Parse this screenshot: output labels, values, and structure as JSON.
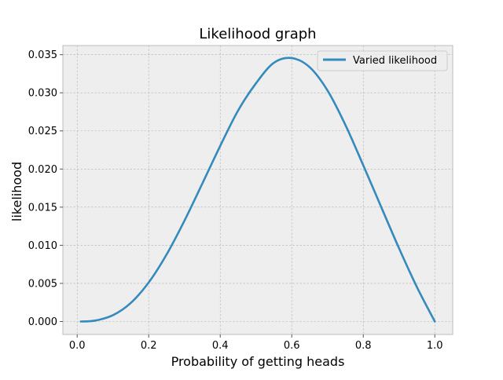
{
  "chart_data": {
    "type": "line",
    "title": "Likelihood graph",
    "xlabel": "Probability of getting heads",
    "ylabel": "likelihood",
    "xlim": [
      -0.04,
      1.05
    ],
    "ylim": [
      -0.0017,
      0.0362
    ],
    "grid": true,
    "grid_style": "dashed",
    "legend_position": "top-right",
    "background_color": "#eeeeee",
    "x_ticks": [
      0.0,
      0.2,
      0.4,
      0.6,
      0.8,
      1.0
    ],
    "x_tick_labels": [
      "0.0",
      "0.2",
      "0.4",
      "0.6",
      "0.8",
      "1.0"
    ],
    "y_ticks": [
      0.0,
      0.005,
      0.01,
      0.015,
      0.02,
      0.025,
      0.03,
      0.035
    ],
    "y_tick_labels": [
      "0.000",
      "0.005",
      "0.010",
      "0.015",
      "0.020",
      "0.025",
      "0.030",
      "0.035"
    ],
    "series": [
      {
        "name": "Varied likelihood",
        "color": "#348abd",
        "x": [
          0.01,
          0.05,
          0.1,
          0.15,
          0.2,
          0.25,
          0.3,
          0.35,
          0.4,
          0.45,
          0.5,
          0.55,
          0.6,
          0.65,
          0.7,
          0.75,
          0.8,
          0.85,
          0.9,
          0.95,
          1.0
        ],
        "y": [
          0.0,
          0.00012,
          0.00083,
          0.00244,
          0.00512,
          0.00879,
          0.01323,
          0.0181,
          0.02304,
          0.02768,
          0.03125,
          0.03394,
          0.03456,
          0.03336,
          0.0303,
          0.02578,
          0.02048,
          0.01503,
          0.0096,
          0.00451,
          0.0
        ]
      }
    ]
  }
}
